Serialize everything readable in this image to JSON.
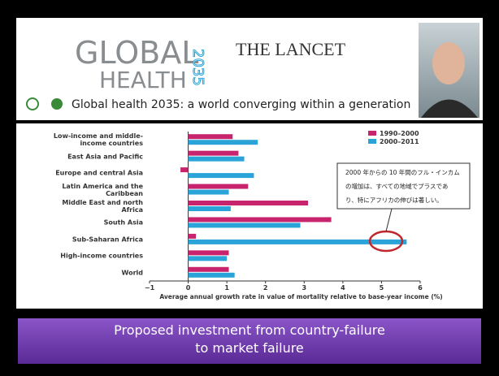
{
  "header": {
    "logo": [
      "GLOBAL",
      "HEALTH",
      "2035"
    ],
    "journal": "THE LANCET",
    "subtitle": "Global health 2035: a world converging within a generation"
  },
  "chart_data": {
    "type": "bar",
    "orientation": "horizontal",
    "categories": [
      "Low-income and middle-income countries",
      "East Asia and Pacific",
      "Europe and central Asia",
      "Latin America and the Caribbean",
      "Middle East and north Africa",
      "South Asia",
      "Sub-Saharan Africa",
      "High-income countries",
      "World"
    ],
    "series": [
      {
        "name": "1990–2000",
        "color": "#c8246e",
        "values": [
          1.15,
          1.3,
          -0.2,
          1.55,
          3.1,
          3.7,
          0.2,
          1.05,
          1.05
        ]
      },
      {
        "name": "2000–2011",
        "color": "#2aa3d8",
        "values": [
          1.8,
          1.45,
          1.7,
          1.05,
          1.1,
          2.9,
          5.65,
          1.0,
          1.2
        ]
      }
    ],
    "xlim": [
      -1,
      6
    ],
    "xticks": [
      {
        "value": -1,
        "label": "−1"
      },
      0,
      1,
      2,
      3,
      4,
      5,
      6
    ],
    "xlabel": "Average annual growth rate in value of mortality relative to base-year income (%)",
    "legend": "upper right",
    "grid": false,
    "annotation": [
      "2000 年からの 10 年間のフル・インカム",
      "の増加は、すべての地域でプラスであ",
      "り、特にアフリカの伸びは著しい。"
    ]
  },
  "banner": [
    "Proposed investment from country-failure",
    "to market failure"
  ]
}
